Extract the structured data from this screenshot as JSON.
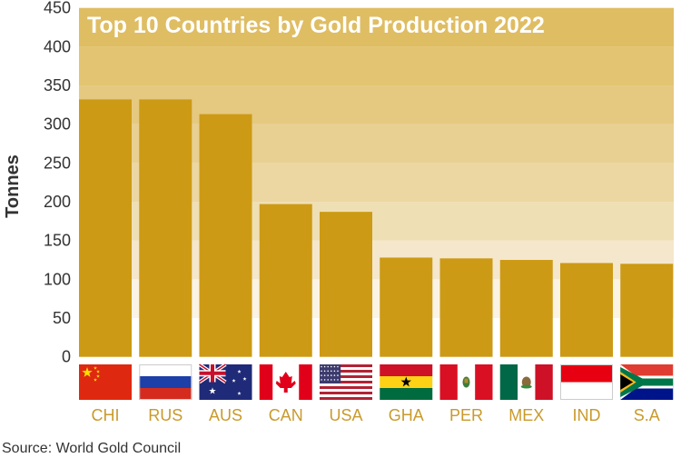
{
  "chart_data": {
    "type": "bar",
    "title": "Top 10 Countries by Gold Production 2022",
    "xlabel": "",
    "ylabel": "Tonnes",
    "ylim": [
      0,
      450
    ],
    "yticks": [
      0,
      50,
      100,
      150,
      200,
      250,
      300,
      350,
      400,
      450
    ],
    "grid": "alternating shaded bands",
    "categories": [
      "CHI",
      "RUS",
      "AUS",
      "CAN",
      "USA",
      "GHA",
      "PER",
      "MEX",
      "IND",
      "S.A"
    ],
    "flags": [
      "china-flag",
      "russia-flag",
      "australia-flag",
      "canada-flag",
      "usa-flag",
      "ghana-flag",
      "peru-flag",
      "mexico-flag",
      "indonesia-flag",
      "south-africa-flag"
    ],
    "values": [
      332,
      332,
      313,
      197,
      187,
      128,
      127,
      125,
      121,
      120
    ],
    "colors": {
      "bar": "#cc9a14",
      "label": "#c99a2c",
      "title_band": "#dfbd63"
    }
  },
  "source": "Source: World Gold Council"
}
